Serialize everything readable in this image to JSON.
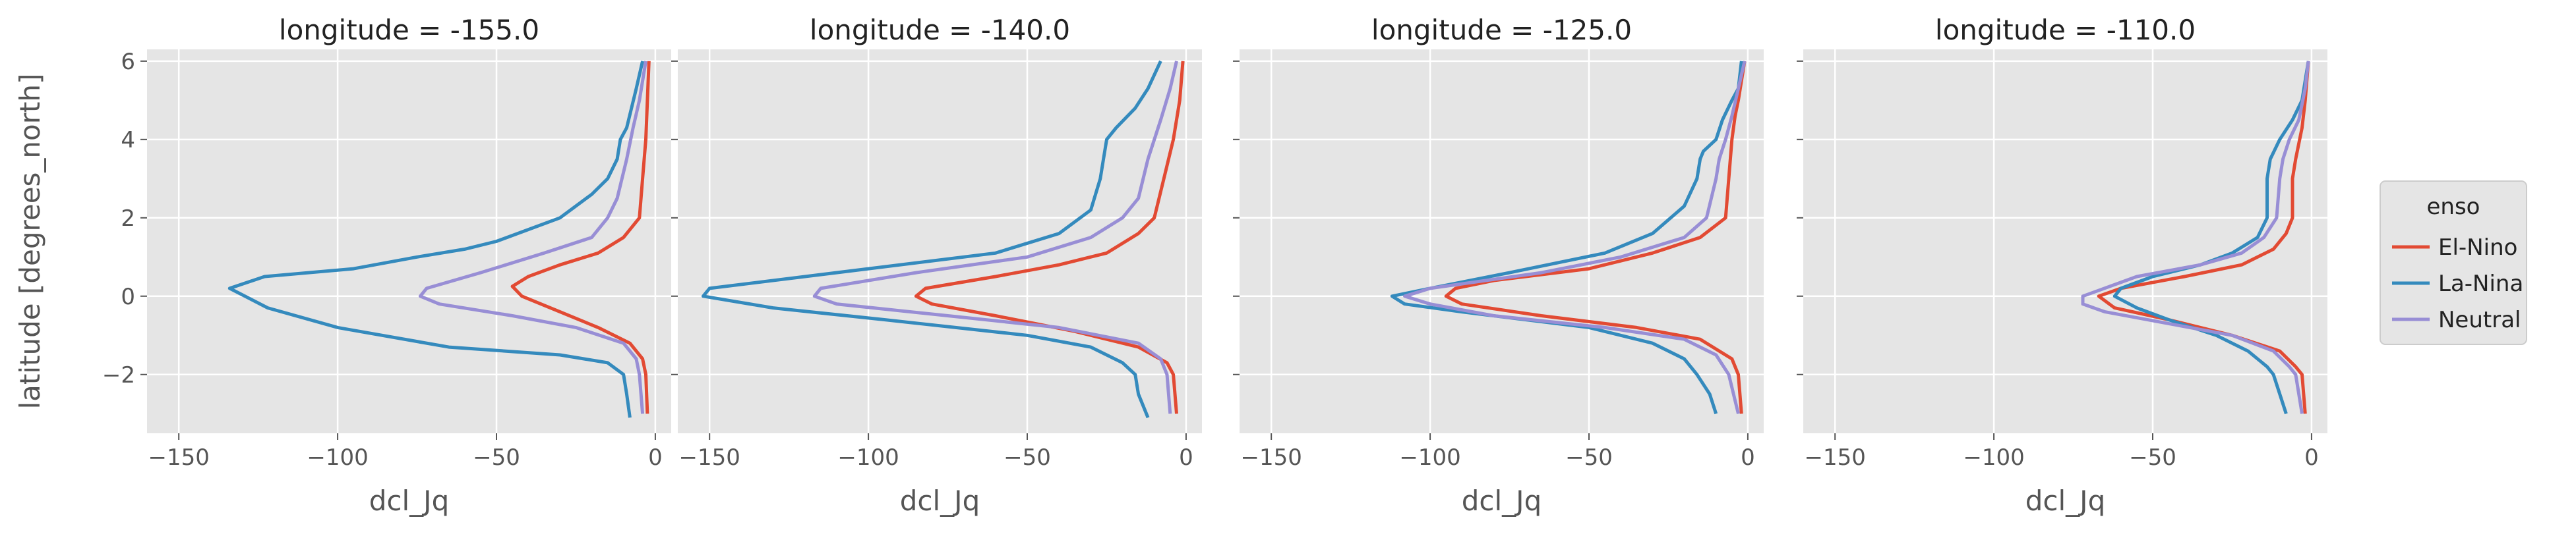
{
  "chart_data": {
    "type": "line",
    "ylabel": "latitude [degrees_north]",
    "xlabel": "dcl_Jq",
    "xlim": [
      -160,
      5
    ],
    "ylim": [
      -3.5,
      6.3
    ],
    "xticks": [
      -150,
      -100,
      -50,
      0
    ],
    "xtick_labels": [
      "−150",
      "−100",
      "−50",
      "0"
    ],
    "yticks": [
      -2,
      0,
      2,
      4,
      6
    ],
    "ytick_labels": [
      "−2",
      "0",
      "2",
      "4",
      "6"
    ],
    "grid": true,
    "legend": {
      "title": "enso",
      "placement": "right",
      "entries": [
        "El-Nino",
        "La-Nina",
        "Neutral"
      ]
    },
    "colors": {
      "El-Nino": "#E24A33",
      "La-Nina": "#348ABD",
      "Neutral": "#988ED5",
      "panel_background": "#E5E5E5",
      "grid": "#FFFFFF"
    },
    "panels": [
      {
        "title": "longitude = -155.0",
        "series": [
          {
            "name": "El-Nino",
            "points": [
              [
                -2,
                6
              ],
              [
                -2.5,
                5
              ],
              [
                -3,
                4
              ],
              [
                -4,
                3
              ],
              [
                -5,
                2
              ],
              [
                -10,
                1.5
              ],
              [
                -18,
                1.1
              ],
              [
                -30,
                0.8
              ],
              [
                -40,
                0.5
              ],
              [
                -45,
                0.25
              ],
              [
                -42,
                0
              ],
              [
                -30,
                -0.4
              ],
              [
                -18,
                -0.8
              ],
              [
                -8,
                -1.2
              ],
              [
                -4,
                -1.6
              ],
              [
                -3,
                -2
              ],
              [
                -2.5,
                -3
              ]
            ]
          },
          {
            "name": "La-Nina",
            "points": [
              [
                -4,
                6
              ],
              [
                -6,
                5.3
              ],
              [
                -9,
                4.3
              ],
              [
                -11,
                4
              ],
              [
                -12,
                3.5
              ],
              [
                -15,
                3
              ],
              [
                -20,
                2.6
              ],
              [
                -30,
                2
              ],
              [
                -50,
                1.4
              ],
              [
                -60,
                1.2
              ],
              [
                -75,
                1
              ],
              [
                -95,
                0.7
              ],
              [
                -123,
                0.5
              ],
              [
                -134,
                0.2
              ],
              [
                -122,
                -0.3
              ],
              [
                -100,
                -0.8
              ],
              [
                -65,
                -1.3
              ],
              [
                -30,
                -1.5
              ],
              [
                -15,
                -1.7
              ],
              [
                -10,
                -2
              ],
              [
                -9,
                -2.5
              ],
              [
                -8,
                -3.1
              ]
            ]
          },
          {
            "name": "Neutral",
            "points": [
              [
                -3,
                6
              ],
              [
                -5,
                5
              ],
              [
                -7,
                4.3
              ],
              [
                -9,
                3.5
              ],
              [
                -12,
                2.5
              ],
              [
                -15,
                2
              ],
              [
                -20,
                1.5
              ],
              [
                -35,
                1.1
              ],
              [
                -55,
                0.6
              ],
              [
                -72,
                0.2
              ],
              [
                -74,
                0
              ],
              [
                -68,
                -0.2
              ],
              [
                -45,
                -0.5
              ],
              [
                -25,
                -0.8
              ],
              [
                -10,
                -1.2
              ],
              [
                -6,
                -1.6
              ],
              [
                -5,
                -2
              ],
              [
                -4,
                -3
              ]
            ]
          }
        ]
      },
      {
        "title": "longitude = -140.0",
        "series": [
          {
            "name": "El-Nino",
            "points": [
              [
                -1,
                6
              ],
              [
                -2,
                5
              ],
              [
                -4,
                4
              ],
              [
                -7,
                3
              ],
              [
                -10,
                2
              ],
              [
                -15,
                1.6
              ],
              [
                -25,
                1.1
              ],
              [
                -40,
                0.8
              ],
              [
                -60,
                0.5
              ],
              [
                -82,
                0.2
              ],
              [
                -85,
                0
              ],
              [
                -80,
                -0.2
              ],
              [
                -60,
                -0.5
              ],
              [
                -35,
                -0.9
              ],
              [
                -15,
                -1.3
              ],
              [
                -6,
                -1.7
              ],
              [
                -4,
                -2
              ],
              [
                -3,
                -3
              ]
            ]
          },
          {
            "name": "La-Nina",
            "points": [
              [
                -8,
                6
              ],
              [
                -12,
                5.3
              ],
              [
                -16,
                4.8
              ],
              [
                -22,
                4.3
              ],
              [
                -25,
                4
              ],
              [
                -26,
                3.5
              ],
              [
                -27,
                3
              ],
              [
                -30,
                2.2
              ],
              [
                -40,
                1.6
              ],
              [
                -60,
                1.1
              ],
              [
                -100,
                0.7
              ],
              [
                -150,
                0.2
              ],
              [
                -152,
                0
              ],
              [
                -130,
                -0.3
              ],
              [
                -95,
                -0.6
              ],
              [
                -50,
                -1
              ],
              [
                -30,
                -1.3
              ],
              [
                -20,
                -1.7
              ],
              [
                -16,
                -2
              ],
              [
                -15,
                -2.5
              ],
              [
                -12,
                -3.1
              ]
            ]
          },
          {
            "name": "Neutral",
            "points": [
              [
                -3,
                6
              ],
              [
                -5,
                5.3
              ],
              [
                -8,
                4.5
              ],
              [
                -12,
                3.5
              ],
              [
                -15,
                2.5
              ],
              [
                -20,
                2
              ],
              [
                -30,
                1.5
              ],
              [
                -50,
                1
              ],
              [
                -85,
                0.6
              ],
              [
                -115,
                0.2
              ],
              [
                -117,
                0
              ],
              [
                -110,
                -0.2
              ],
              [
                -75,
                -0.5
              ],
              [
                -40,
                -0.8
              ],
              [
                -15,
                -1.2
              ],
              [
                -8,
                -1.6
              ],
              [
                -6,
                -2
              ],
              [
                -5,
                -3
              ]
            ]
          }
        ]
      },
      {
        "title": "longitude = -125.0",
        "series": [
          {
            "name": "El-Nino",
            "points": [
              [
                -1,
                6
              ],
              [
                -3,
                5
              ],
              [
                -4,
                4.6
              ],
              [
                -5,
                4
              ],
              [
                -6,
                3
              ],
              [
                -7,
                2
              ],
              [
                -15,
                1.5
              ],
              [
                -30,
                1.1
              ],
              [
                -50,
                0.7
              ],
              [
                -80,
                0.4
              ],
              [
                -92,
                0.2
              ],
              [
                -95,
                0
              ],
              [
                -90,
                -0.2
              ],
              [
                -65,
                -0.5
              ],
              [
                -35,
                -0.8
              ],
              [
                -15,
                -1.1
              ],
              [
                -5,
                -1.6
              ],
              [
                -3,
                -2
              ],
              [
                -2,
                -3
              ]
            ]
          },
          {
            "name": "La-Nina",
            "points": [
              [
                -2,
                6
              ],
              [
                -3,
                5.3
              ],
              [
                -5,
                5
              ],
              [
                -8,
                4.5
              ],
              [
                -10,
                4
              ],
              [
                -14,
                3.7
              ],
              [
                -15,
                3.5
              ],
              [
                -16,
                3
              ],
              [
                -20,
                2.3
              ],
              [
                -30,
                1.6
              ],
              [
                -45,
                1.1
              ],
              [
                -75,
                0.6
              ],
              [
                -100,
                0.2
              ],
              [
                -112,
                0
              ],
              [
                -108,
                -0.2
              ],
              [
                -90,
                -0.4
              ],
              [
                -50,
                -0.8
              ],
              [
                -30,
                -1.2
              ],
              [
                -20,
                -1.6
              ],
              [
                -16,
                -2
              ],
              [
                -12,
                -2.5
              ],
              [
                -10,
                -3
              ]
            ]
          },
          {
            "name": "Neutral",
            "points": [
              [
                -1,
                6
              ],
              [
                -3,
                5.3
              ],
              [
                -5,
                4.6
              ],
              [
                -7,
                4
              ],
              [
                -9,
                3.5
              ],
              [
                -10,
                3
              ],
              [
                -13,
                2
              ],
              [
                -20,
                1.5
              ],
              [
                -40,
                1
              ],
              [
                -65,
                0.6
              ],
              [
                -100,
                0.2
              ],
              [
                -108,
                0
              ],
              [
                -100,
                -0.2
              ],
              [
                -80,
                -0.5
              ],
              [
                -45,
                -0.8
              ],
              [
                -20,
                -1.1
              ],
              [
                -10,
                -1.5
              ],
              [
                -6,
                -2
              ],
              [
                -3,
                -3
              ]
            ]
          }
        ]
      },
      {
        "title": "longitude = -110.0",
        "series": [
          {
            "name": "El-Nino",
            "points": [
              [
                -1,
                6
              ],
              [
                -2,
                5
              ],
              [
                -3,
                4.3
              ],
              [
                -5,
                3.5
              ],
              [
                -6,
                3
              ],
              [
                -6,
                2
              ],
              [
                -8,
                1.6
              ],
              [
                -12,
                1.2
              ],
              [
                -22,
                0.8
              ],
              [
                -40,
                0.5
              ],
              [
                -60,
                0.2
              ],
              [
                -67,
                0
              ],
              [
                -62,
                -0.3
              ],
              [
                -45,
                -0.6
              ],
              [
                -25,
                -1
              ],
              [
                -10,
                -1.4
              ],
              [
                -5,
                -1.8
              ],
              [
                -3,
                -2
              ],
              [
                -2,
                -3
              ]
            ]
          },
          {
            "name": "La-Nina",
            "points": [
              [
                -1,
                6
              ],
              [
                -3,
                5
              ],
              [
                -6,
                4.5
              ],
              [
                -10,
                4
              ],
              [
                -13,
                3.5
              ],
              [
                -14,
                3
              ],
              [
                -14,
                2
              ],
              [
                -17,
                1.5
              ],
              [
                -25,
                1.1
              ],
              [
                -35,
                0.8
              ],
              [
                -50,
                0.5
              ],
              [
                -60,
                0.2
              ],
              [
                -62,
                0
              ],
              [
                -55,
                -0.3
              ],
              [
                -45,
                -0.6
              ],
              [
                -30,
                -1
              ],
              [
                -20,
                -1.4
              ],
              [
                -14,
                -1.8
              ],
              [
                -12,
                -2
              ],
              [
                -8,
                -3
              ]
            ]
          },
          {
            "name": "Neutral",
            "points": [
              [
                -1,
                6
              ],
              [
                -2,
                5.3
              ],
              [
                -4,
                4.5
              ],
              [
                -7,
                4
              ],
              [
                -9,
                3.5
              ],
              [
                -10,
                3
              ],
              [
                -11,
                2
              ],
              [
                -15,
                1.5
              ],
              [
                -22,
                1.1
              ],
              [
                -35,
                0.8
              ],
              [
                -55,
                0.5
              ],
              [
                -72,
                0
              ],
              [
                -72,
                -0.2
              ],
              [
                -65,
                -0.4
              ],
              [
                -45,
                -0.7
              ],
              [
                -25,
                -1
              ],
              [
                -12,
                -1.4
              ],
              [
                -7,
                -1.8
              ],
              [
                -5,
                -2
              ],
              [
                -3,
                -3
              ]
            ]
          }
        ]
      }
    ]
  }
}
